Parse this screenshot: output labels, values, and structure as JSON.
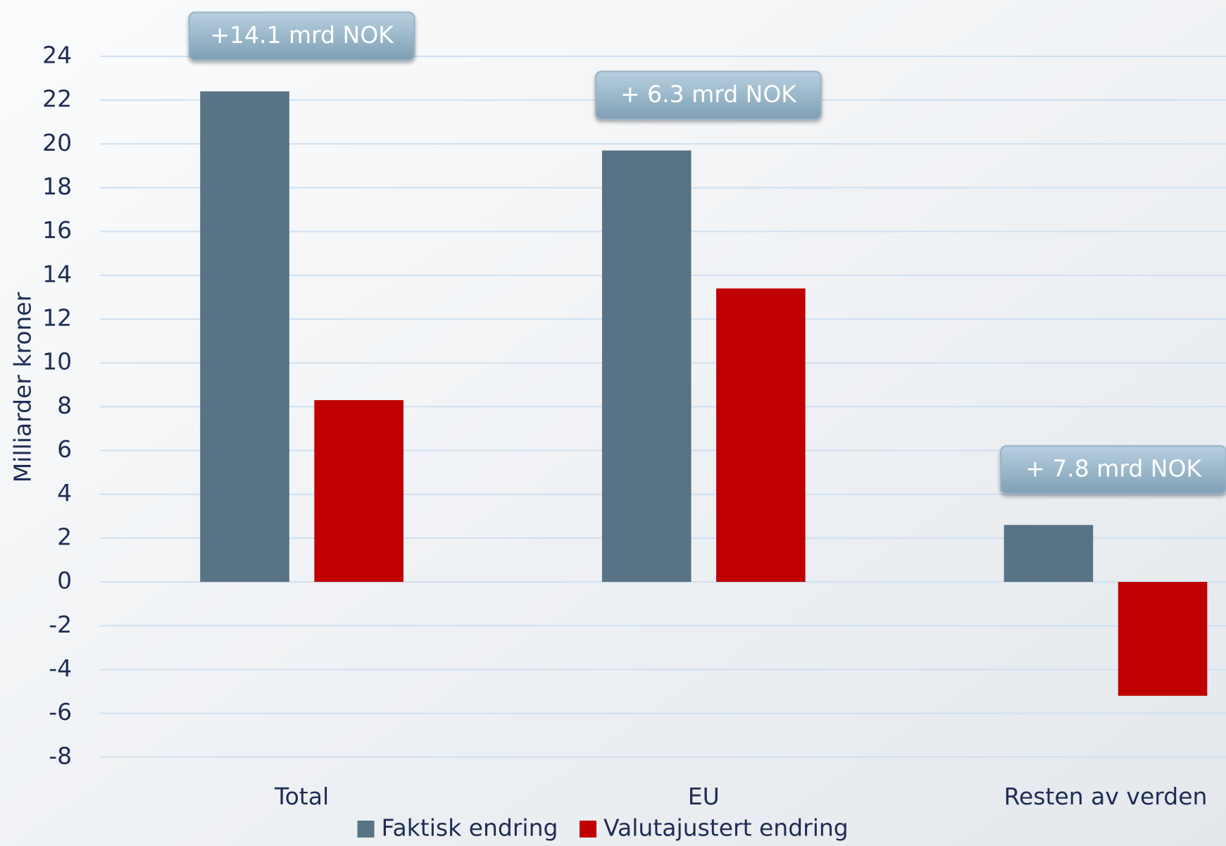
{
  "chart_data": {
    "type": "bar",
    "ylabel": "Milliarder kroner",
    "categories": [
      "Total",
      "EU",
      "Resten av verden"
    ],
    "series": [
      {
        "name": "Faktisk endring",
        "color": "#587385",
        "values": [
          22.4,
          19.7,
          2.6
        ]
      },
      {
        "name": "Valutajustert endring",
        "color": "#c00000",
        "values": [
          8.3,
          13.4,
          -5.2
        ]
      }
    ],
    "annotations": [
      "+14.1 mrd NOK",
      "+ 6.3 mrd NOK",
      "+ 7.8 mrd NOK"
    ],
    "ylim": [
      -8,
      24
    ],
    "yticks": [
      -8,
      -6,
      -4,
      -2,
      0,
      2,
      4,
      6,
      8,
      10,
      12,
      14,
      16,
      18,
      20,
      22,
      24
    ],
    "grid": true,
    "legend": "bottom"
  }
}
